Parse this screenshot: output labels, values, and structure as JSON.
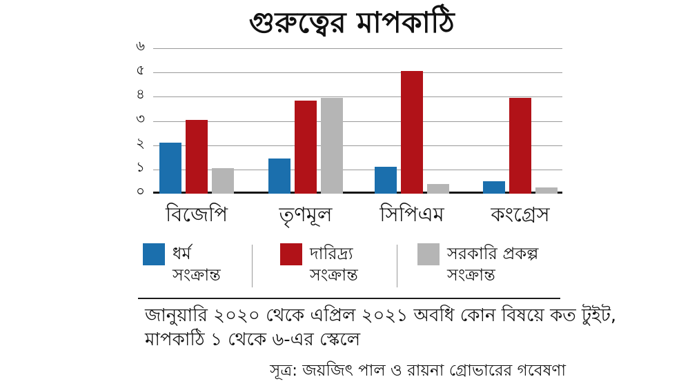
{
  "title": "গুরুত্বের মাপকাঠি",
  "colors": {
    "religion_blue": "#1b6fad",
    "poverty_red": "#b11218",
    "govt_gray": "#b5b5b5",
    "gridline": "#999999",
    "axis": "#111111"
  },
  "chart_data": {
    "type": "bar",
    "title": "গুরুত্বের মাপকাঠি",
    "categories": [
      "বিজেপি",
      "তৃণমূল",
      "সিপিএম",
      "কংগ্রেস"
    ],
    "series": [
      {
        "name": "ধর্ম সংক্রান্ত",
        "color": "#1b6fad",
        "values": [
          2.1,
          1.45,
          1.1,
          0.5
        ]
      },
      {
        "name": "দারিদ্র্য সংক্রান্ত",
        "color": "#b11218",
        "values": [
          3.05,
          3.85,
          5.05,
          3.95
        ]
      },
      {
        "name": "সরকারি প্রকল্প সংক্রান্ত",
        "color": "#b5b5b5",
        "values": [
          1.05,
          3.95,
          0.4,
          0.25
        ]
      }
    ],
    "xlabel": "",
    "ylabel": "",
    "ylim": [
      0,
      6
    ],
    "yticks": {
      "values": [
        0,
        1,
        2,
        3,
        4,
        5,
        6
      ],
      "labels": [
        "০",
        "১",
        "২",
        "৩",
        "৪",
        "৫",
        "৬"
      ]
    },
    "grid": true,
    "legend_position": "bottom"
  },
  "legend": {
    "items": [
      {
        "line1": "ধর্ম",
        "line2": "সংক্রান্ত",
        "color": "#1b6fad"
      },
      {
        "line1": "দারিদ্র্য",
        "line2": "সংক্রান্ত",
        "color": "#b11218"
      },
      {
        "line1": "সরকারি প্রকল্প",
        "line2": "সংক্রান্ত",
        "color": "#b5b5b5"
      }
    ]
  },
  "footnote": {
    "line1": "জানুয়ারি ২০২০ থেকে এপ্রিল ২০২১ অবধি কোন বিষয়ে কত টুইট,",
    "line2": "মাপকাঠি ১ থেকে ৬-এর স্কেলে"
  },
  "source": "সূত্র: জয়জিৎ পাল ও রায়না গ্রোভারের গবেষণা"
}
